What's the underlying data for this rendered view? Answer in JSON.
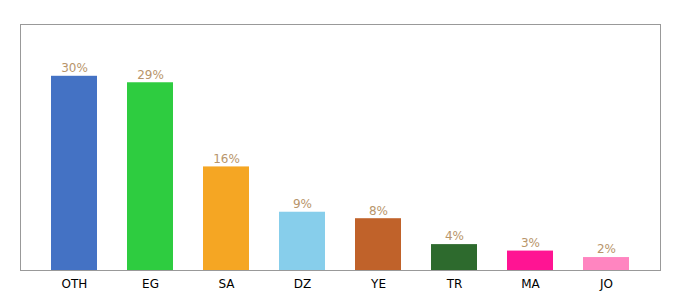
{
  "chart_data": {
    "type": "bar",
    "categories": [
      "OTH",
      "EG",
      "SA",
      "DZ",
      "YE",
      "TR",
      "MA",
      "JO"
    ],
    "values": [
      30,
      29,
      16,
      9,
      8,
      4,
      3,
      2
    ],
    "value_labels": [
      "30%",
      "29%",
      "16%",
      "9%",
      "8%",
      "4%",
      "3%",
      "2%"
    ],
    "colors": [
      "#4472c4",
      "#2ecc40",
      "#f5a623",
      "#87ceeb",
      "#c0622a",
      "#2d6a2d",
      "#ff1493",
      "#ff85c0"
    ],
    "ylim": [
      0,
      38
    ],
    "data_labels": true,
    "tick_labels": "x",
    "grid": false
  }
}
